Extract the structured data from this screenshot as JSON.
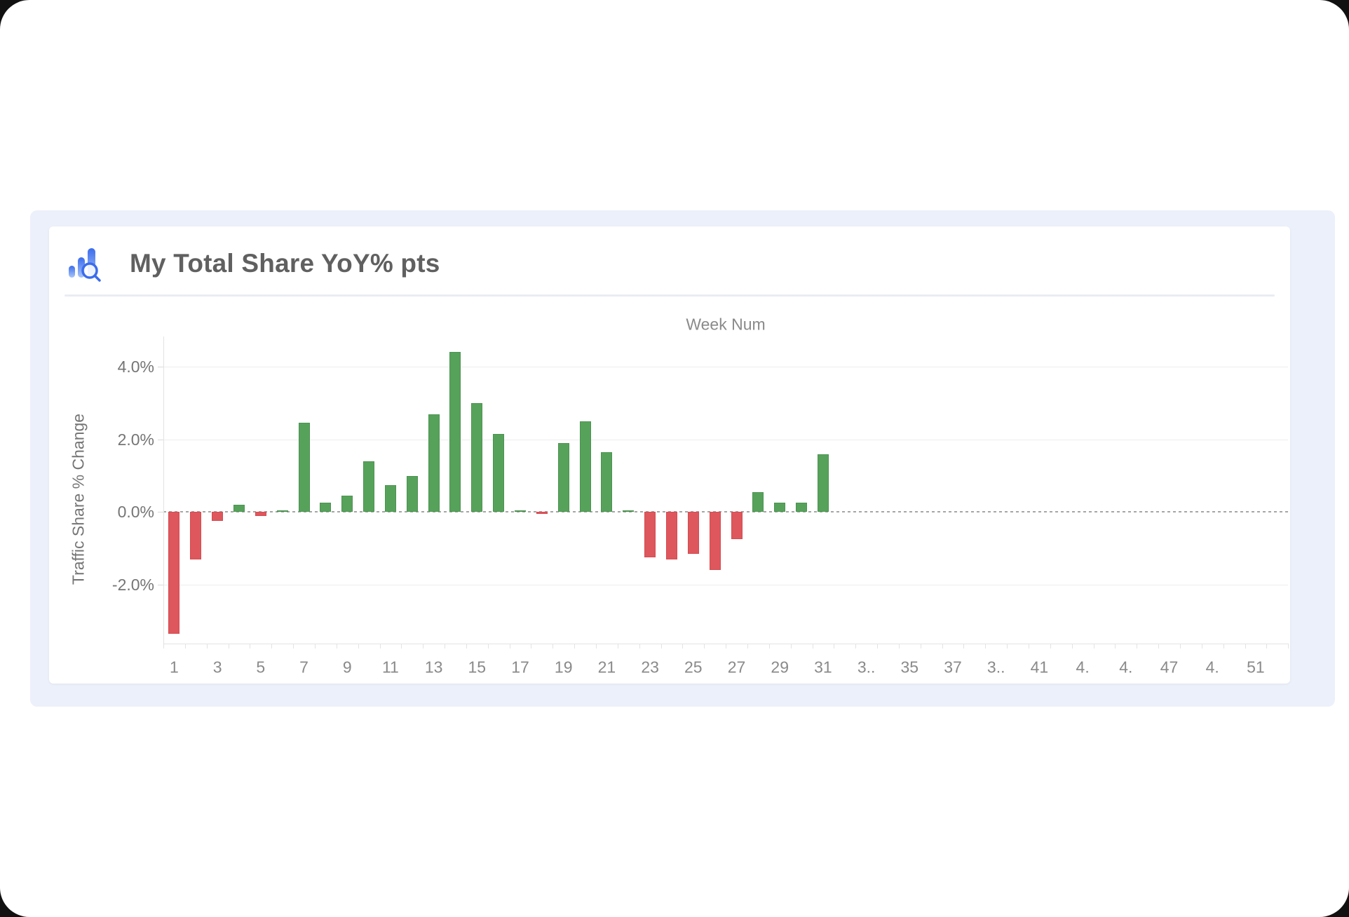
{
  "card": {
    "title": "My Total Share YoY% pts",
    "icon": "bar-chart-magnifier-icon"
  },
  "colors": {
    "positive_bar": "#57A25B",
    "negative_bar": "#DE575C",
    "icon_blue": "#3B6CEC",
    "container_bg": "#ECF0FA"
  },
  "chart_data": {
    "type": "bar",
    "title": "My Total Share YoY% pts",
    "x_axis_title": "Week Num",
    "y_axis_title": "Traffic Share % Change",
    "legend": "none",
    "grid": "horizontal",
    "zero_line": "dashed",
    "ylim": [
      -3.62,
      4.83
    ],
    "xlim_weeks": [
      1,
      52
    ],
    "y_ticks": [
      {
        "label": "4.0%",
        "value": 4
      },
      {
        "label": "2.0%",
        "value": 2
      },
      {
        "label": "0.0%",
        "value": 0
      },
      {
        "label": "-2.0%",
        "value": -2
      }
    ],
    "x_tick_labels": [
      {
        "week": 1,
        "text": "1"
      },
      {
        "week": 3,
        "text": "3"
      },
      {
        "week": 5,
        "text": "5"
      },
      {
        "week": 7,
        "text": "7"
      },
      {
        "week": 9,
        "text": "9"
      },
      {
        "week": 11,
        "text": "11"
      },
      {
        "week": 13,
        "text": "13"
      },
      {
        "week": 15,
        "text": "15"
      },
      {
        "week": 17,
        "text": "17"
      },
      {
        "week": 19,
        "text": "19"
      },
      {
        "week": 21,
        "text": "21"
      },
      {
        "week": 23,
        "text": "23"
      },
      {
        "week": 25,
        "text": "25"
      },
      {
        "week": 27,
        "text": "27"
      },
      {
        "week": 29,
        "text": "29"
      },
      {
        "week": 31,
        "text": "31"
      },
      {
        "week": 33,
        "text": "3.."
      },
      {
        "week": 35,
        "text": "35"
      },
      {
        "week": 37,
        "text": "37"
      },
      {
        "week": 39,
        "text": "3.."
      },
      {
        "week": 41,
        "text": "41"
      },
      {
        "week": 43,
        "text": "4."
      },
      {
        "week": 45,
        "text": "4."
      },
      {
        "week": 47,
        "text": "47"
      },
      {
        "week": 49,
        "text": "4."
      },
      {
        "week": 51,
        "text": "51"
      }
    ],
    "categories": [
      1,
      2,
      3,
      4,
      5,
      6,
      7,
      8,
      9,
      10,
      11,
      12,
      13,
      14,
      15,
      16,
      17,
      18,
      19,
      20,
      21,
      22,
      23,
      24,
      25,
      26,
      27,
      28,
      29,
      30,
      31,
      32,
      33,
      34,
      35,
      36,
      37,
      38,
      39,
      40,
      41,
      42,
      43,
      44,
      45,
      46,
      47,
      48,
      49,
      50,
      51,
      52
    ],
    "series": [
      {
        "name": "Traffic Share % Change",
        "values": [
          -3.35,
          -1.3,
          -0.25,
          0.2,
          -0.1,
          0.05,
          2.45,
          0.25,
          0.45,
          1.4,
          0.75,
          1.0,
          2.7,
          4.4,
          3.0,
          2.15,
          0.05,
          -0.05,
          1.9,
          2.5,
          1.65,
          0.05,
          -1.25,
          -1.3,
          -1.15,
          -1.6,
          -0.75,
          0.55,
          0.25,
          0.25,
          1.6,
          null,
          null,
          null,
          null,
          null,
          null,
          null,
          null,
          null,
          null,
          null,
          null,
          null,
          null,
          null,
          null,
          null,
          null,
          null,
          null,
          null
        ]
      }
    ]
  }
}
